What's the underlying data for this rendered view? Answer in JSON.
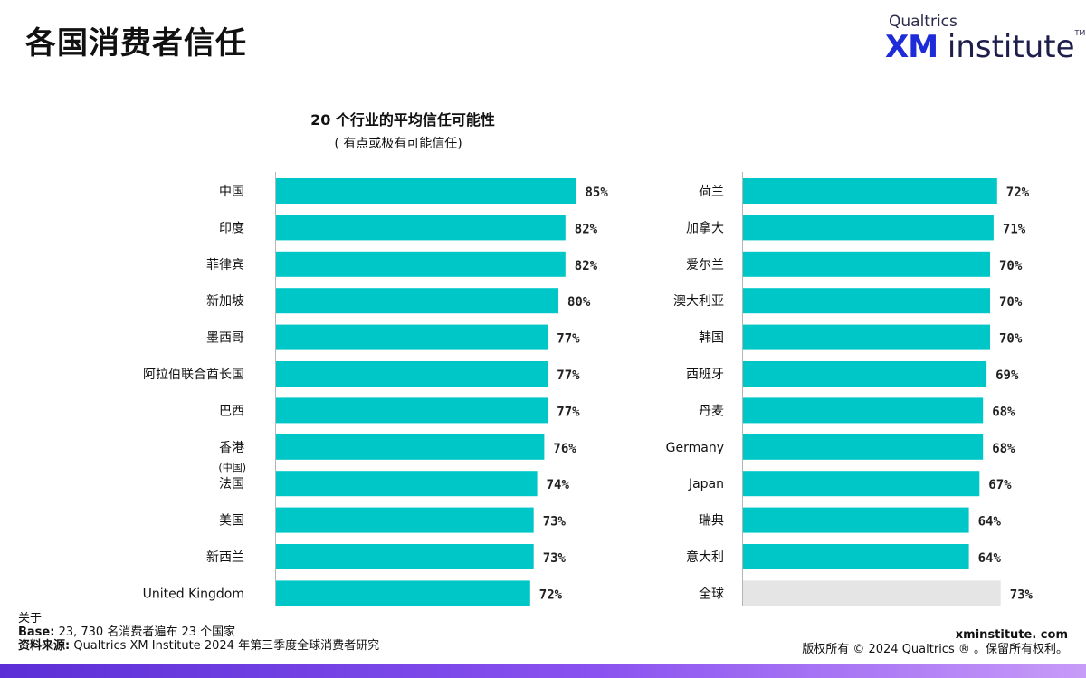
{
  "page": {
    "title": "各国消费者信任"
  },
  "logo": {
    "top": "Qualtrics",
    "xm": "XM",
    "rest": " institute",
    "tm": "TM"
  },
  "chart_data": {
    "type": "bar",
    "orientation": "horizontal",
    "title": "20 个行业的平均信任可能性",
    "subtitle": "( 有点或极有可能信任)",
    "xlim": [
      0,
      100
    ],
    "bar_color": "#00c7c7",
    "highlight_color": "#e5e5e5",
    "grid": false,
    "panels": [
      {
        "categories": [
          "中国",
          "印度",
          "菲律宾",
          "新加坡",
          "墨西哥",
          "阿拉伯联合酋长国",
          "巴西",
          "香港",
          "法国",
          "美国",
          "新西兰",
          "United Kingdom"
        ],
        "values": [
          85,
          82,
          82,
          80,
          77,
          77,
          77,
          76,
          74,
          73,
          73,
          72
        ],
        "value_labels": [
          "85%",
          "82%",
          "82%",
          "80%",
          "77%",
          "77%",
          "77%",
          "76%",
          "74%",
          "73%",
          "73%",
          "72%"
        ],
        "sublabels": [
          "",
          "",
          "",
          "",
          "",
          "",
          "",
          "(中国)",
          "",
          "",
          "",
          ""
        ]
      },
      {
        "categories": [
          "荷兰",
          "加拿大",
          "爱尔兰",
          "澳大利亚",
          "韩国",
          "西班牙",
          "丹麦",
          "Germany",
          "Japan",
          "瑞典",
          "意大利",
          "全球"
        ],
        "values": [
          72,
          71,
          70,
          70,
          70,
          69,
          68,
          68,
          67,
          64,
          64,
          73
        ],
        "value_labels": [
          "72%",
          "71%",
          "70%",
          "70%",
          "70%",
          "69%",
          "68%",
          "68%",
          "67%",
          "64%",
          "64%",
          "73%"
        ],
        "highlight_index": 11
      }
    ]
  },
  "footer": {
    "about": "关于",
    "base_label": "Base:",
    "base_text": " 23, 730 名消费者遍布 23 个国家",
    "source_label": "资料来源:",
    "source_text": " Qualtrics XM Institute 2024 年第三季度全球消费者研究",
    "site": "xminstitute. com",
    "copyright": "版权所有 © 2024 Qualtrics ® 。保留所有权利。"
  }
}
